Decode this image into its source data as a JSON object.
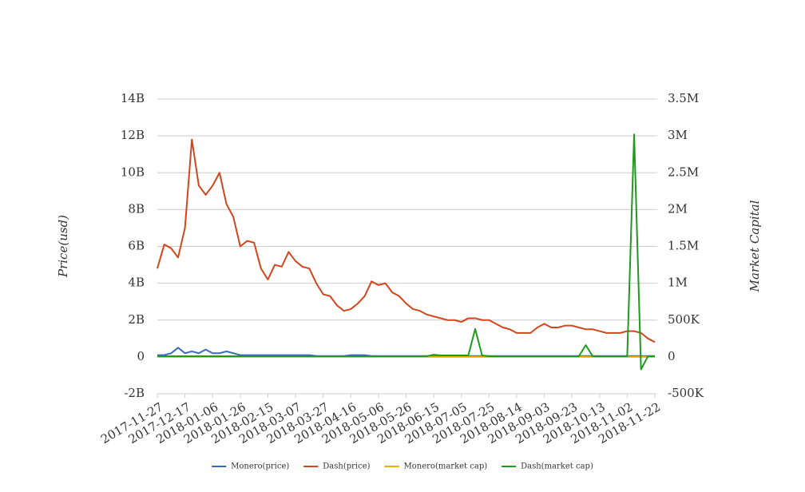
{
  "chart_data": {
    "type": "line",
    "y_label": "Price(usd)",
    "y2_label": "Market Capital",
    "x": [
      "2017-11-27",
      "2017-12-02",
      "2017-12-07",
      "2017-12-12",
      "2017-12-17",
      "2017-12-22",
      "2017-12-27",
      "2018-01-01",
      "2018-01-06",
      "2018-01-11",
      "2018-01-16",
      "2018-01-21",
      "2018-01-26",
      "2018-01-31",
      "2018-02-05",
      "2018-02-10",
      "2018-02-15",
      "2018-02-20",
      "2018-02-25",
      "2018-03-02",
      "2018-03-07",
      "2018-03-12",
      "2018-03-17",
      "2018-03-22",
      "2018-03-27",
      "2018-04-01",
      "2018-04-06",
      "2018-04-11",
      "2018-04-16",
      "2018-04-21",
      "2018-04-26",
      "2018-05-01",
      "2018-05-06",
      "2018-05-11",
      "2018-05-16",
      "2018-05-21",
      "2018-05-26",
      "2018-05-31",
      "2018-06-05",
      "2018-06-10",
      "2018-06-15",
      "2018-06-20",
      "2018-06-25",
      "2018-06-30",
      "2018-07-05",
      "2018-07-10",
      "2018-07-15",
      "2018-07-20",
      "2018-07-25",
      "2018-07-30",
      "2018-08-04",
      "2018-08-09",
      "2018-08-14",
      "2018-08-19",
      "2018-08-24",
      "2018-08-29",
      "2018-09-03",
      "2018-09-08",
      "2018-09-13",
      "2018-09-18",
      "2018-09-23",
      "2018-09-28",
      "2018-10-03",
      "2018-10-08",
      "2018-10-13",
      "2018-10-18",
      "2018-10-23",
      "2018-10-28",
      "2018-11-02",
      "2018-11-07",
      "2018-11-12",
      "2018-11-17",
      "2018-11-22"
    ],
    "xticks": [
      "2017-11-27",
      "2017-12-17",
      "2018-01-06",
      "2018-01-26",
      "2018-02-15",
      "2018-03-07",
      "2018-03-27",
      "2018-04-16",
      "2018-05-06",
      "2018-05-26",
      "2018-06-15",
      "2018-07-05",
      "2018-07-25",
      "2018-08-14",
      "2018-09-03",
      "2018-09-23",
      "2018-10-13",
      "2018-11-02",
      "2018-11-22"
    ],
    "xlim": [
      "2017-11-27",
      "2018-11-22"
    ],
    "ylim": [
      -2000000000.0,
      14000000000.0
    ],
    "yticks": [
      {
        "value": -2000000000.0,
        "label": "-2B"
      },
      0,
      {
        "value": 2000000000.0,
        "label": "2B"
      },
      {
        "value": 4000000000.0,
        "label": "4B"
      },
      {
        "value": 6000000000.0,
        "label": "6B"
      },
      {
        "value": 8000000000.0,
        "label": "8B"
      },
      {
        "value": 10000000000.0,
        "label": "10B"
      },
      {
        "value": 12000000000.0,
        "label": "12B"
      },
      {
        "value": 14000000000.0,
        "label": "14B"
      }
    ],
    "y2lim": [
      -500000,
      3500000
    ],
    "y2ticks": [
      {
        "value": -500000,
        "label": "-500K"
      },
      0,
      {
        "value": 500000,
        "label": "500K"
      },
      {
        "value": 1000000,
        "label": "1M"
      },
      {
        "value": 1500000,
        "label": "1.5M"
      },
      {
        "value": 2000000,
        "label": "2M"
      },
      {
        "value": 2500000,
        "label": "2.5M"
      },
      {
        "value": 3000000,
        "label": "3M"
      },
      {
        "value": 3500000,
        "label": "3.5M"
      }
    ],
    "grid": true,
    "legend": "bottom",
    "series": [
      {
        "name": "Monero(price)",
        "color": "#3a6bbf",
        "values": [
          100000000.0,
          100000000.0,
          200000000.0,
          500000000.0,
          200000000.0,
          300000000.0,
          200000000.0,
          400000000.0,
          200000000.0,
          200000000.0,
          300000000.0,
          200000000.0,
          100000000.0,
          100000000.0,
          100000000.0,
          100000000.0,
          100000000.0,
          100000000.0,
          100000000.0,
          100000000.0,
          100000000.0,
          100000000.0,
          100000000.0,
          50000000.0,
          50000000.0,
          50000000.0,
          50000000.0,
          50000000.0,
          100000000.0,
          100000000.0,
          100000000.0,
          50000000.0,
          50000000.0,
          50000000.0,
          50000000.0,
          50000000.0,
          50000000.0,
          50000000.0,
          50000000.0,
          50000000.0,
          50000000.0,
          50000000.0,
          50000000.0,
          50000000.0,
          50000000.0,
          50000000.0,
          50000000.0,
          50000000.0,
          50000000.0,
          50000000.0,
          50000000.0,
          50000000.0,
          50000000.0,
          50000000.0,
          50000000.0,
          50000000.0,
          50000000.0,
          50000000.0,
          50000000.0,
          50000000.0,
          50000000.0,
          50000000.0,
          50000000.0,
          50000000.0,
          50000000.0,
          50000000.0,
          50000000.0,
          50000000.0,
          50000000.0,
          50000000.0,
          50000000.0,
          50000000.0,
          50000000.0
        ]
      },
      {
        "name": "Dash(price)",
        "color": "#d2461c",
        "values": [
          4800000000.0,
          6100000000.0,
          5900000000.0,
          5400000000.0,
          7000000000.0,
          11800000000.0,
          9300000000.0,
          8800000000.0,
          9300000000.0,
          10000000000.0,
          8300000000.0,
          7600000000.0,
          6000000000.0,
          6300000000.0,
          6200000000.0,
          4800000000.0,
          4200000000.0,
          5000000000.0,
          4900000000.0,
          5700000000.0,
          5200000000.0,
          4900000000.0,
          4800000000.0,
          4000000000.0,
          3400000000.0,
          3300000000.0,
          2800000000.0,
          2500000000.0,
          2600000000.0,
          2900000000.0,
          3300000000.0,
          4100000000.0,
          3900000000.0,
          4000000000.0,
          3500000000.0,
          3300000000.0,
          2900000000.0,
          2600000000.0,
          2500000000.0,
          2300000000.0,
          2200000000.0,
          2100000000.0,
          2000000000.0,
          2000000000.0,
          1900000000.0,
          2100000000.0,
          2100000000.0,
          2000000000.0,
          2000000000.0,
          1800000000.0,
          1600000000.0,
          1500000000.0,
          1300000000.0,
          1300000000.0,
          1300000000.0,
          1600000000.0,
          1800000000.0,
          1600000000.0,
          1600000000.0,
          1700000000.0,
          1700000000.0,
          1600000000.0,
          1500000000.0,
          1500000000.0,
          1400000000.0,
          1300000000.0,
          1300000000.0,
          1300000000.0,
          1400000000.0,
          1400000000.0,
          1300000000.0,
          1000000000.0,
          800000000.0
        ]
      },
      {
        "name": "Monero(market cap)",
        "color": "#e8ad00",
        "axis": "y2",
        "values": [
          2000,
          2000,
          2000,
          2000,
          2000,
          2000,
          2000,
          2000,
          2000,
          2000,
          2000,
          2000,
          2000,
          2000,
          2000,
          2000,
          2000,
          2000,
          2000,
          2000,
          2000,
          2000,
          2000,
          2000,
          2000,
          2000,
          2000,
          2000,
          2000,
          2000,
          2000,
          2000,
          2000,
          2000,
          2000,
          2000,
          2000,
          2000,
          2000,
          2000,
          2000,
          2000,
          2000,
          2000,
          2000,
          2000,
          2000,
          2000,
          2000,
          2000,
          2000,
          2000,
          2000,
          2000,
          2000,
          2000,
          2000,
          2000,
          2000,
          2000,
          2000,
          2000,
          2000,
          2000,
          2000,
          2000,
          2000,
          2000,
          2000,
          2000,
          2000,
          2000,
          2000
        ]
      },
      {
        "name": "Dash(market cap)",
        "color": "#1f9a1f",
        "axis": "y2",
        "values": [
          10000,
          10000,
          10000,
          10000,
          10000,
          10000,
          10000,
          10000,
          10000,
          10000,
          10000,
          10000,
          10000,
          10000,
          10000,
          10000,
          10000,
          10000,
          10000,
          10000,
          10000,
          10000,
          10000,
          10000,
          10000,
          10000,
          10000,
          10000,
          10000,
          10000,
          10000,
          10000,
          10000,
          10000,
          10000,
          10000,
          10000,
          10000,
          10000,
          10000,
          30000,
          20000,
          20000,
          20000,
          20000,
          20000,
          380000,
          20000,
          10000,
          10000,
          10000,
          10000,
          10000,
          10000,
          10000,
          10000,
          10000,
          10000,
          10000,
          10000,
          10000,
          10000,
          160000,
          10000,
          10000,
          10000,
          10000,
          10000,
          10000,
          3020000,
          -170000,
          10000,
          10000
        ]
      }
    ]
  }
}
